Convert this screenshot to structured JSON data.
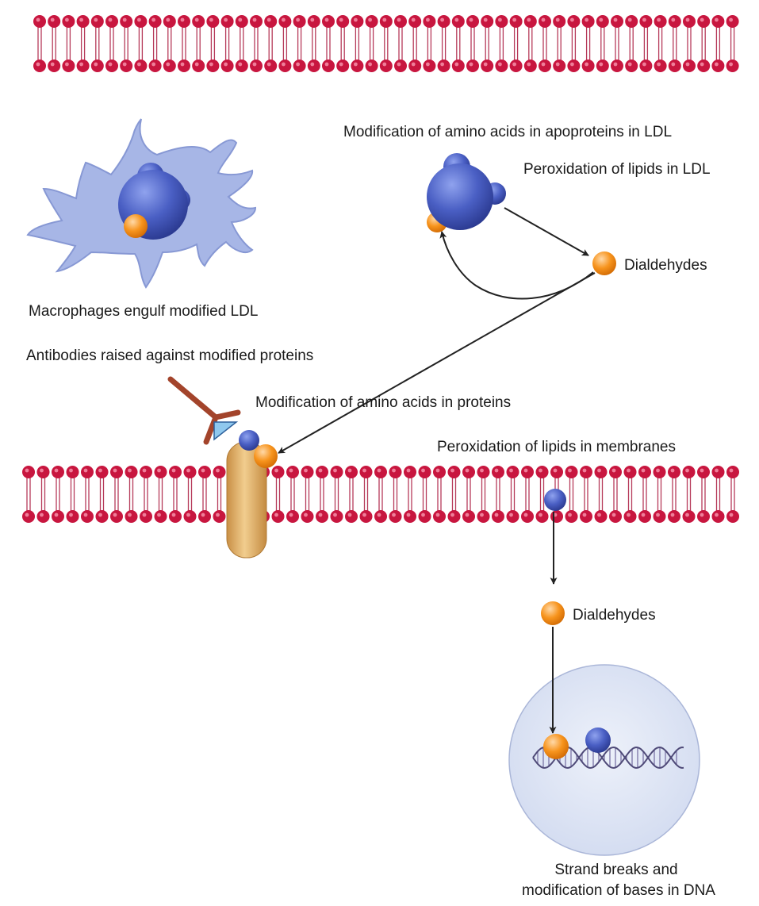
{
  "labels": {
    "ldl_protein_mod": "Modification of amino acids in apoproteins in LDL",
    "ldl_lipid_perox": "Peroxidation of lipids in LDL",
    "dialdehydes_top": "Dialdehydes",
    "macrophage": "Macrophages engulf modified LDL",
    "antibodies": "Antibodies raised against modified proteins",
    "protein_mod": "Modification of amino acids in proteins",
    "membrane_perox": "Peroxidation of lipids in membranes",
    "dialdehydes_bottom": "Dialdehydes",
    "dna_line1": "Strand breaks and",
    "dna_line2": "modification of bases in DNA"
  },
  "colors": {
    "lipid_head": "#c8163f",
    "lipid_tail": "#b63a5a",
    "ldl_blue": "#4a5fc4",
    "dialdehyde_orange": "#f7941d",
    "macrophage_fill": "#a7b6e6",
    "antibody": "#a3442b",
    "antigen": "#8fc8ee",
    "membrane_protein": "#e3b46e",
    "nucleus_fill": "#dde4f4",
    "dna": "#4f4a78",
    "arrow": "#222222"
  }
}
